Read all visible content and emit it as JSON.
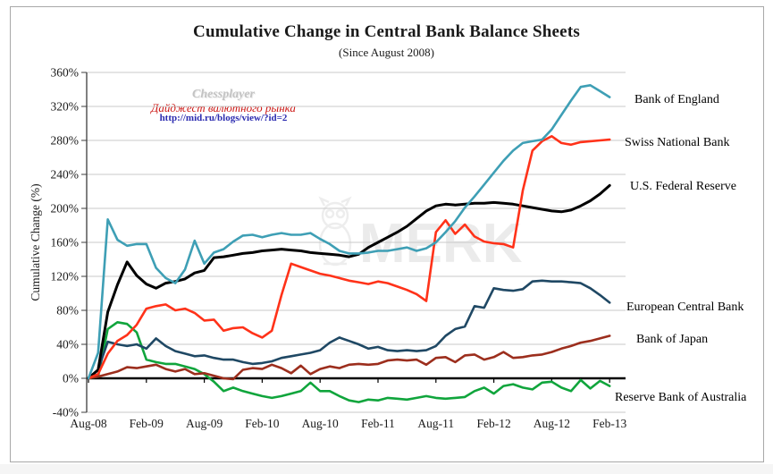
{
  "frame": {
    "title": "Cumulative Change in Central Bank Balance Sheets",
    "subtitle": "(Since August 2008)",
    "y_axis_label": "Cumulative Change  (%)"
  },
  "watermark": {
    "line1": "Chessplayer",
    "line2": "Дайджест валютного рынка",
    "line3": "http://mid.ru/blogs/view/?id=2",
    "center_text": "MERK"
  },
  "chart_data": {
    "type": "line",
    "title": "Cumulative Change in Central Bank Balance Sheets",
    "subtitle": "(Since August 2008)",
    "xlabel": "",
    "ylabel": "Cumulative Change (%)",
    "ylim": [
      -40,
      360
    ],
    "y_tick_step": 40,
    "y_tick_suffix": "%",
    "grid": true,
    "legend_position": "right-end-labels",
    "n_points": 55,
    "x_start": "Aug-08",
    "x_end": "Feb-13",
    "months_between_ticks": 6,
    "x_tick_labels": [
      "Aug-08",
      "Feb-09",
      "Aug-09",
      "Feb-10",
      "Aug-10",
      "Feb-11",
      "Aug-11",
      "Feb-12",
      "Aug-12",
      "Feb-13"
    ],
    "series": [
      {
        "name": "Bank of England",
        "color": "#3E9FB5",
        "values": [
          0,
          30,
          187,
          163,
          156,
          158,
          158,
          130,
          118,
          112,
          128,
          162,
          135,
          148,
          152,
          161,
          168,
          169,
          166,
          169,
          171,
          169,
          169,
          171,
          164,
          158,
          150,
          147,
          147,
          148,
          150,
          150,
          152,
          154,
          150,
          153,
          160,
          172,
          185,
          201,
          214,
          228,
          242,
          256,
          268,
          277,
          279,
          281,
          293,
          310,
          327,
          343,
          345,
          338,
          331
        ]
      },
      {
        "name": "Swiss National Bank",
        "color": "#FF3219",
        "values": [
          0,
          5,
          29,
          44,
          51,
          63,
          82,
          85,
          87,
          80,
          82,
          77,
          68,
          69,
          56,
          59,
          60,
          53,
          48,
          56,
          98,
          135,
          131,
          127,
          123,
          121,
          118,
          115,
          113,
          111,
          114,
          112,
          108,
          104,
          99,
          91,
          172,
          186,
          170,
          181,
          167,
          161,
          159,
          158,
          154,
          221,
          268,
          279,
          285,
          277,
          275,
          278,
          279,
          280,
          281
        ]
      },
      {
        "name": "U.S. Federal Reserve",
        "color": "#000000",
        "values": [
          0,
          10,
          78,
          110,
          137,
          121,
          111,
          106,
          112,
          114,
          117,
          124,
          127,
          142,
          143,
          145,
          147,
          148,
          150,
          151,
          152,
          151,
          150,
          148,
          147,
          146,
          145,
          143,
          146,
          154,
          160,
          166,
          172,
          179,
          188,
          197,
          203,
          205,
          204,
          205,
          206,
          206,
          207,
          206,
          205,
          203,
          201,
          199,
          197,
          196,
          198,
          203,
          209,
          217,
          227
        ]
      },
      {
        "name": "European Central Bank",
        "color": "#1F4864",
        "values": [
          0,
          10,
          43,
          40,
          38,
          40,
          35,
          47,
          38,
          32,
          29,
          26,
          27,
          24,
          22,
          22,
          19,
          17,
          18,
          20,
          24,
          26,
          28,
          30,
          33,
          42,
          48,
          44,
          40,
          35,
          37,
          33,
          32,
          33,
          32,
          33,
          38,
          50,
          58,
          61,
          85,
          83,
          106,
          104,
          103,
          105,
          114,
          115,
          114,
          114,
          113,
          112,
          106,
          98,
          89
        ]
      },
      {
        "name": "Bank of Japan",
        "color": "#9C2E1D",
        "values": [
          0,
          2,
          5,
          8,
          13,
          12,
          14,
          16,
          11,
          8,
          11,
          5,
          6,
          3,
          0,
          -1,
          10,
          12,
          11,
          16,
          12,
          6,
          15,
          5,
          11,
          14,
          12,
          16,
          17,
          16,
          17,
          21,
          22,
          21,
          22,
          16,
          24,
          25,
          19,
          27,
          28,
          22,
          25,
          31,
          24,
          25,
          27,
          28,
          31,
          35,
          38,
          42,
          44,
          47,
          50
        ]
      },
      {
        "name": "Reserve Bank of Australia",
        "color": "#10A53C",
        "values": [
          0,
          2,
          58,
          66,
          64,
          54,
          22,
          19,
          17,
          17,
          14,
          11,
          5,
          -4,
          -15,
          -11,
          -15,
          -18,
          -21,
          -23,
          -21,
          -18,
          -15,
          -5,
          -15,
          -15,
          -21,
          -26,
          -28,
          -25,
          -26,
          -23,
          -24,
          -25,
          -23,
          -21,
          -23,
          -24,
          -23,
          -22,
          -15,
          -11,
          -18,
          -9,
          -7,
          -11,
          -13,
          -5,
          -4,
          -11,
          -15,
          -2,
          -12,
          -3,
          -9
        ]
      }
    ]
  }
}
